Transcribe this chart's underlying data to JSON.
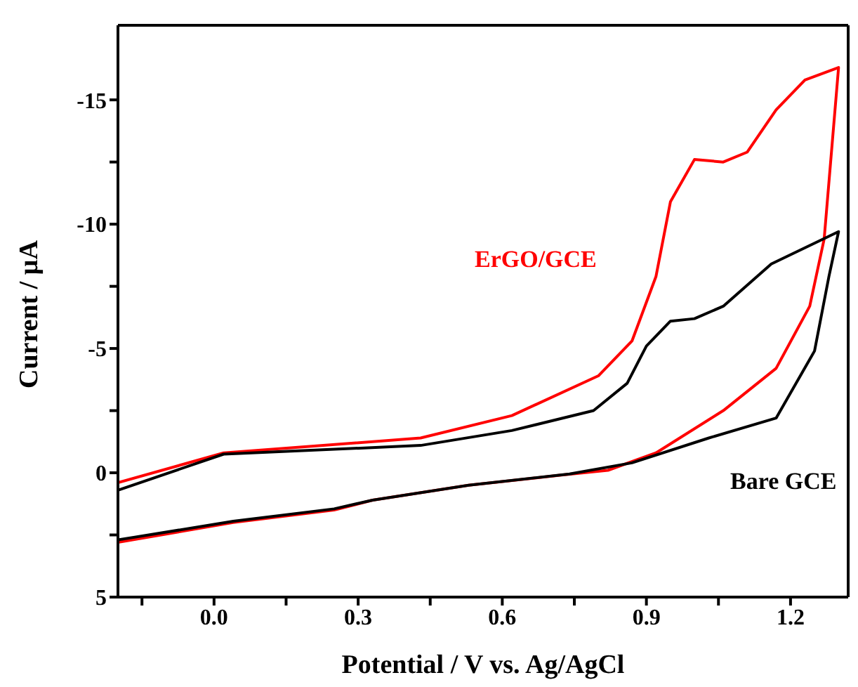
{
  "chart_data": {
    "type": "line",
    "xlabel": "Potential / V vs. Ag/AgCl",
    "ylabel": "Current / μA",
    "xlim": [
      -0.2,
      1.32
    ],
    "ylim": [
      5,
      -18
    ],
    "xticks": [
      {
        "value": -0.15,
        "label": null
      },
      {
        "value": 0,
        "label": "0.0"
      },
      {
        "value": 0.15,
        "label": null
      },
      {
        "value": 0.3,
        "label": "0.3"
      },
      {
        "value": 0.45,
        "label": null
      },
      {
        "value": 0.6,
        "label": "0.6"
      },
      {
        "value": 0.75,
        "label": null
      },
      {
        "value": 0.9,
        "label": "0.9"
      },
      {
        "value": 1.05,
        "label": null
      },
      {
        "value": 1.2,
        "label": "1.2"
      }
    ],
    "yticks": [
      -15,
      {
        "value": -12.5,
        "label": null
      },
      -10,
      {
        "value": -7.5,
        "label": null
      },
      -5,
      {
        "value": -2.5,
        "label": null
      },
      0,
      {
        "value": 2.5,
        "label": null
      },
      5
    ],
    "line_style": "solid",
    "marker": "none",
    "series": [
      {
        "color": "#ff0000",
        "x": [
          -0.2,
          0.02,
          0.43,
          0.62,
          0.8,
          0.87,
          0.92,
          0.95,
          1.0,
          1.06,
          1.11,
          1.17,
          1.23,
          1.3,
          1.27,
          1.24,
          1.17,
          1.06,
          0.92,
          0.82,
          0.72,
          0.53,
          0.33,
          0.25,
          0.04,
          -0.2
        ],
        "values": [
          0.4,
          -0.8,
          -1.4,
          -2.3,
          -3.9,
          -5.3,
          -7.9,
          -10.9,
          -12.6,
          -12.5,
          -12.9,
          -14.6,
          -15.8,
          -16.3,
          -9.4,
          -6.7,
          -4.2,
          -2.5,
          -0.8,
          -0.1,
          0.1,
          0.5,
          1.1,
          1.5,
          2.0,
          2.8
        ]
      },
      {
        "color": "#000000",
        "x": [
          -0.2,
          0.02,
          0.43,
          0.62,
          0.79,
          0.86,
          0.9,
          0.95,
          1.0,
          1.06,
          1.16,
          1.3,
          1.28,
          1.25,
          1.17,
          1.03,
          0.87,
          0.74,
          0.53,
          0.33,
          0.25,
          0.04,
          -0.2
        ],
        "values": [
          0.7,
          -0.75,
          -1.1,
          -1.7,
          -2.5,
          -3.6,
          -5.1,
          -6.1,
          -6.2,
          -6.7,
          -8.4,
          -9.7,
          -7.9,
          -4.9,
          -2.2,
          -1.4,
          -0.4,
          0.05,
          0.5,
          1.1,
          1.45,
          1.95,
          2.7
        ]
      }
    ],
    "annotations": [
      "ErGO/GCE",
      "Bare GCE"
    ]
  }
}
